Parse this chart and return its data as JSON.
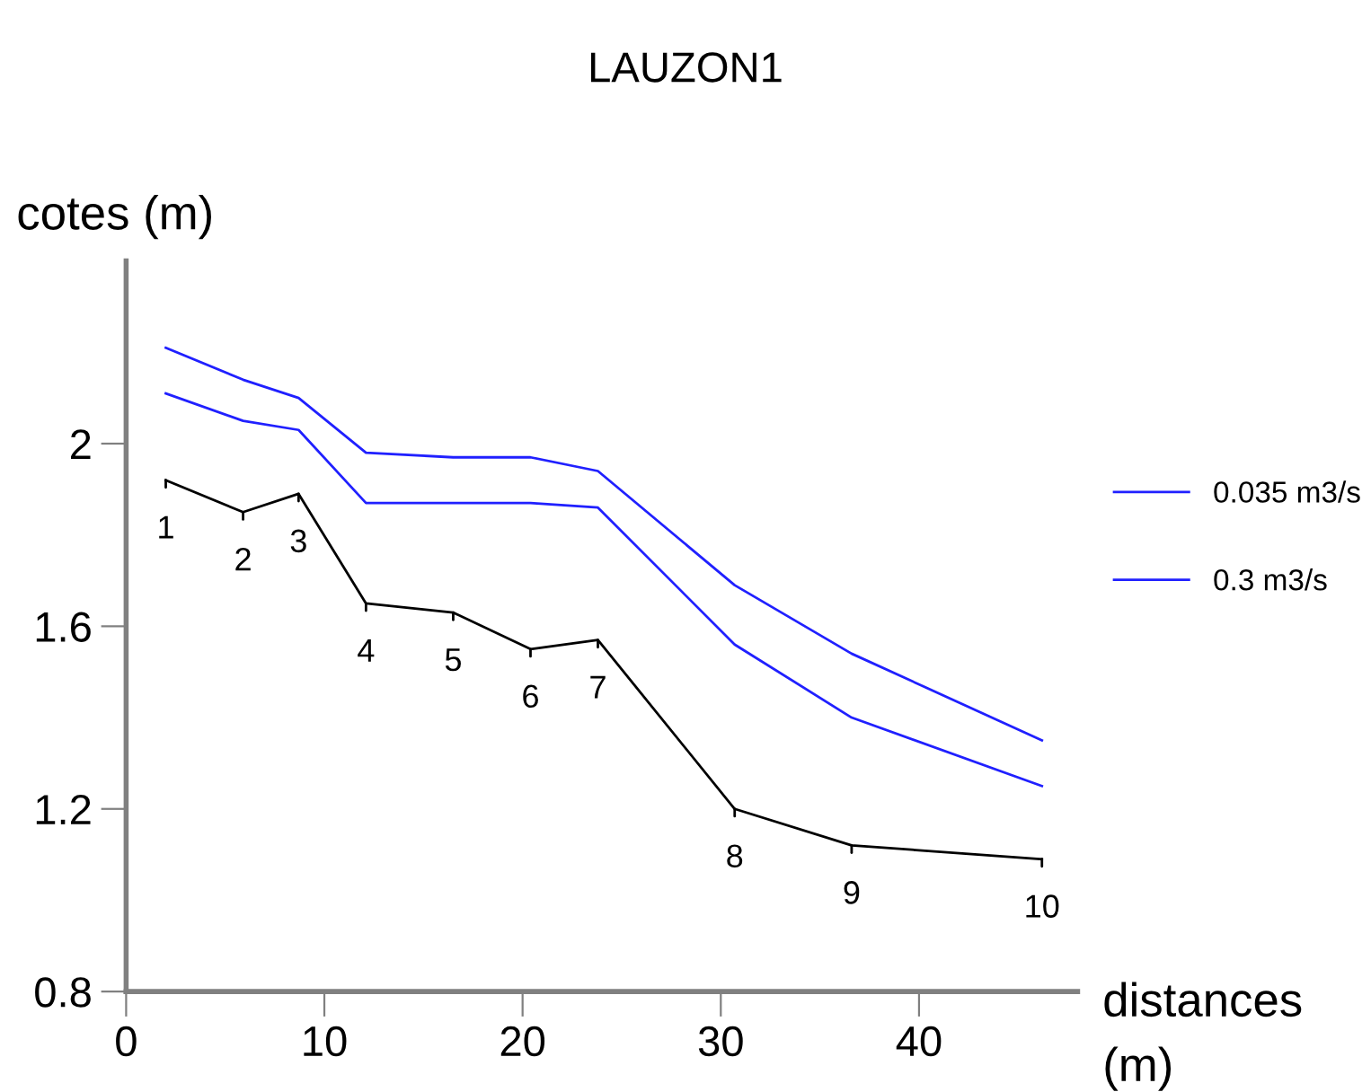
{
  "chart_data": {
    "type": "line",
    "title": "LAUZON1",
    "xlabel": "distances\n(m)",
    "ylabel": "cotes (m)",
    "x": [
      2.0,
      5.9,
      8.7,
      12.1,
      16.5,
      20.4,
      23.8,
      30.7,
      36.6,
      46.2
    ],
    "series": [
      {
        "name": "0.035 m3/s",
        "color": "#2020ff",
        "values": [
          2.11,
          2.05,
          2.03,
          1.87,
          1.87,
          1.87,
          1.86,
          1.56,
          1.4,
          1.25
        ]
      },
      {
        "name": "0.3 m3/s",
        "color": "#2020ff",
        "values": [
          2.21,
          2.14,
          2.1,
          1.98,
          1.97,
          1.97,
          1.94,
          1.69,
          1.54,
          1.35
        ]
      },
      {
        "color": "#000000",
        "values": [
          1.92,
          1.85,
          1.89,
          1.65,
          1.63,
          1.55,
          1.57,
          1.2,
          1.12,
          1.09
        ]
      }
    ],
    "annotations": [
      {
        "text": "1",
        "x": 2.0,
        "y": 1.92
      },
      {
        "text": "2",
        "x": 5.9,
        "y": 1.85
      },
      {
        "text": "3",
        "x": 8.7,
        "y": 1.89
      },
      {
        "text": "4",
        "x": 12.1,
        "y": 1.65
      },
      {
        "text": "5",
        "x": 16.5,
        "y": 1.63
      },
      {
        "text": "6",
        "x": 20.4,
        "y": 1.55
      },
      {
        "text": "7",
        "x": 23.8,
        "y": 1.57
      },
      {
        "text": "8",
        "x": 30.7,
        "y": 1.2
      },
      {
        "text": "9",
        "x": 36.6,
        "y": 1.12
      },
      {
        "text": "10",
        "x": 46.2,
        "y": 1.09
      }
    ],
    "xlim": [
      0,
      48
    ],
    "ylim": [
      0.8,
      2.4
    ],
    "xticks": [
      0,
      10,
      20,
      30,
      40
    ],
    "yticks": [
      0.8,
      1.2,
      1.6,
      2
    ],
    "legend": "right"
  }
}
